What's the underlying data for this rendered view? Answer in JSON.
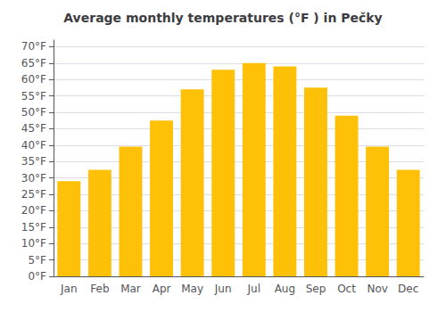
{
  "chart_data": {
    "type": "bar",
    "title": "Average monthly temperatures (°F ) in Pečky",
    "categories": [
      "Jan",
      "Feb",
      "Mar",
      "Apr",
      "May",
      "Jun",
      "Jul",
      "Aug",
      "Sep",
      "Oct",
      "Nov",
      "Dec"
    ],
    "values": [
      29,
      32.5,
      39.5,
      47.5,
      57,
      63,
      65,
      64,
      57.5,
      49,
      39.5,
      32.5
    ],
    "color": "#FFC107",
    "ylim": [
      0,
      72
    ],
    "yticks": [
      {
        "value": 0,
        "label": "0°F"
      },
      {
        "value": 5,
        "label": "5°F"
      },
      {
        "value": 10,
        "label": "10°F"
      },
      {
        "value": 15,
        "label": "15°F"
      },
      {
        "value": 20,
        "label": "20°F"
      },
      {
        "value": 25,
        "label": "25°F"
      },
      {
        "value": 30,
        "label": "30°F"
      },
      {
        "value": 35,
        "label": "35°F"
      },
      {
        "value": 40,
        "label": "40°F"
      },
      {
        "value": 45,
        "label": "45°F"
      },
      {
        "value": 50,
        "label": "50°F"
      },
      {
        "value": 55,
        "label": "55°F"
      },
      {
        "value": 60,
        "label": "60°F"
      },
      {
        "value": 65,
        "label": "65°F"
      },
      {
        "value": 70,
        "label": "70°F"
      }
    ],
    "grid": true
  }
}
